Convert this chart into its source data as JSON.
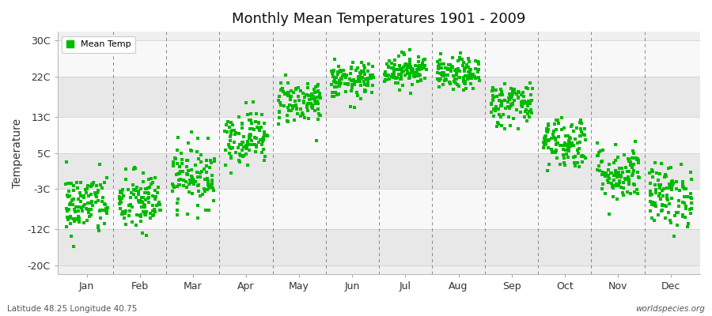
{
  "title": "Monthly Mean Temperatures 1901 - 2009",
  "ylabel": "Temperature",
  "xlabel_months": [
    "Jan",
    "Feb",
    "Mar",
    "Apr",
    "May",
    "Jun",
    "Jul",
    "Aug",
    "Sep",
    "Oct",
    "Nov",
    "Dec"
  ],
  "yticks": [
    -20,
    -12,
    -3,
    5,
    13,
    22,
    30
  ],
  "ytick_labels": [
    "-20C",
    "-12C",
    "-3C",
    "5C",
    "13C",
    "22C",
    "30C"
  ],
  "ylim": [
    -22,
    32
  ],
  "dot_color": "#00bb00",
  "dot_size": 5,
  "fig_bg_color": "#ffffff",
  "plot_bg_color": "#f0f0f0",
  "band_light": "#f8f8f8",
  "band_dark": "#e8e8e8",
  "legend_label": "Mean Temp",
  "bottom_left": "Latitude 48.25 Longitude 40.75",
  "bottom_right": "worldspecies.org",
  "monthly_means": [
    -6.5,
    -6.0,
    0.0,
    8.5,
    16.5,
    21.0,
    23.5,
    22.5,
    16.0,
    7.5,
    0.5,
    -4.5
  ],
  "monthly_stds": [
    3.5,
    3.5,
    3.5,
    3.0,
    2.5,
    2.0,
    1.8,
    1.8,
    2.5,
    3.0,
    3.2,
    3.5
  ],
  "n_years": 109,
  "seed": 42,
  "dashed_line_color": "#555555",
  "grid_color": "#cccccc"
}
